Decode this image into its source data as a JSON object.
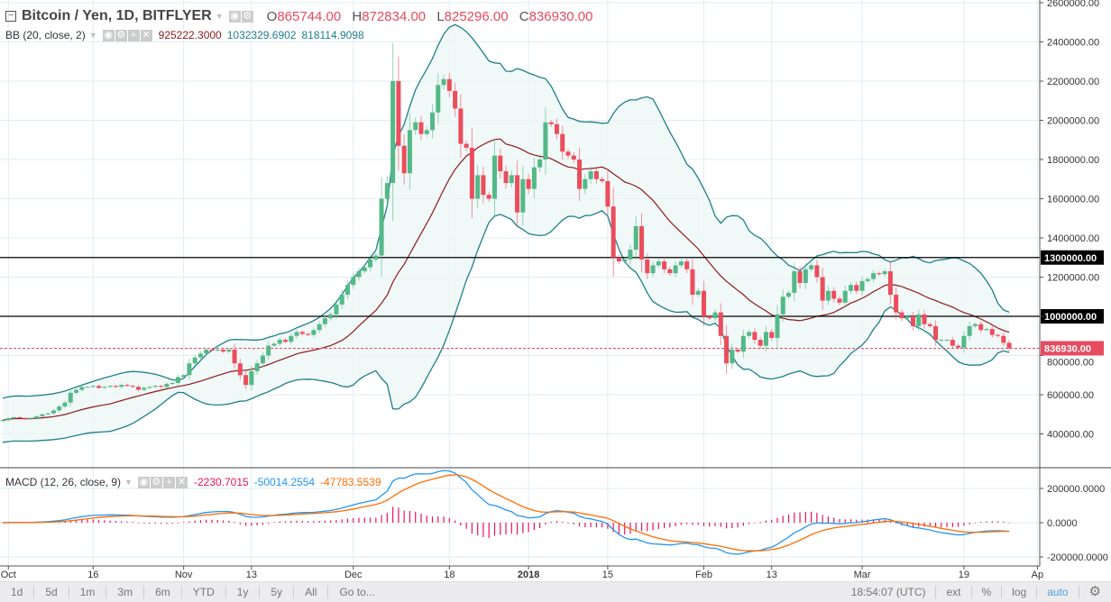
{
  "header": {
    "symbol_title": "Bitcoin / Yen, 1D, BITFLYER",
    "open_label": "O",
    "open_value": "865744.00",
    "high_label": "H",
    "high_value": "872834.00",
    "low_label": "L",
    "low_value": "825296.00",
    "close_label": "C",
    "close_value": "836930.00"
  },
  "bb_legend": {
    "label": "BB (20, close, 2)",
    "basis": "925222.3000",
    "upper": "1032329.6902",
    "lower": "818114.9098"
  },
  "macd_legend": {
    "label": "MACD (12, 26, close, 9)",
    "histogram": "-2230.7015",
    "macd": "-50014.2554",
    "signal": "-47783.5539"
  },
  "colors": {
    "up": "#53b987",
    "down": "#eb4d5c",
    "bb_band": "#1d7f8a",
    "bb_basis": "#8b1a1a",
    "bb_fill": "#eef6f6",
    "macd": "#2196f3",
    "signal": "#ff6d00",
    "hist": "#e8145a",
    "price_line": "#e84a5f",
    "grid": "#e1ecf2"
  },
  "chart_data": {
    "type": "candlestick",
    "title": "Bitcoin / Yen, 1D, BITFLYER",
    "start_date": "2017-09-30",
    "end_date": "2018-03-27",
    "closes_thousand_jpy": [
      470,
      480,
      485,
      480,
      475,
      480,
      490,
      500,
      505,
      520,
      540,
      560,
      610,
      625,
      640,
      640,
      645,
      635,
      640,
      645,
      640,
      650,
      645,
      640,
      625,
      635,
      640,
      645,
      640,
      655,
      660,
      690,
      700,
      760,
      790,
      810,
      830,
      825,
      830,
      820,
      830,
      760,
      700,
      650,
      720,
      760,
      800,
      850,
      860,
      880,
      870,
      900,
      920,
      910,
      905,
      930,
      960,
      990,
      1010,
      1060,
      1110,
      1160,
      1200,
      1230,
      1250,
      1290,
      1310,
      1600,
      1680,
      2200,
      1870,
      1730,
      1950,
      1990,
      1930,
      1950,
      2040,
      2180,
      2210,
      2150,
      2060,
      1880,
      1860,
      1600,
      1720,
      1620,
      1600,
      1820,
      1740,
      1680,
      1720,
      1530,
      1700,
      1650,
      1760,
      1800,
      1990,
      1980,
      1930,
      1840,
      1820,
      1800,
      1650,
      1700,
      1740,
      1700,
      1690,
      1560,
      1300,
      1280,
      1290,
      1340,
      1460,
      1290,
      1220,
      1260,
      1280,
      1240,
      1220,
      1260,
      1280,
      1240,
      1110,
      1130,
      1000,
      990,
      1020,
      900,
      760,
      830,
      820,
      900,
      920,
      880,
      850,
      920,
      890,
      1010,
      1100,
      1120,
      1230,
      1170,
      1240,
      1260,
      1200,
      1080,
      1130,
      1090,
      1070,
      1130,
      1160,
      1130,
      1180,
      1190,
      1220,
      1215,
      1230,
      1110,
      1020,
      990,
      1000,
      950,
      1010,
      960,
      950,
      880,
      880,
      880,
      850,
      840,
      900,
      950,
      960,
      930,
      935,
      905,
      900,
      865,
      837
    ],
    "y_axis": {
      "range": [
        300000,
        2600000
      ],
      "ticks": [
        "2600000.00",
        "2400000.00",
        "2200000.00",
        "2000000.00",
        "1800000.00",
        "1600000.00",
        "1400000.00",
        "1200000.00",
        "1000000.00",
        "800000.00",
        "600000.00",
        "400000.00"
      ]
    },
    "horizontal_lines": [
      {
        "value": 1300000,
        "label": "1300000.00"
      },
      {
        "value": 1000000,
        "label": "1000000.00"
      }
    ],
    "last_price": {
      "value": 836930,
      "label": "836930.00"
    },
    "x_ticks": [
      {
        "day": 1,
        "label": "Oct"
      },
      {
        "day": 16,
        "label": "16"
      },
      {
        "day": 32,
        "label": "Nov"
      },
      {
        "day": 44,
        "label": "13"
      },
      {
        "day": 62,
        "label": "Dec"
      },
      {
        "day": 79,
        "label": "18"
      },
      {
        "day": 93,
        "label": "2018"
      },
      {
        "day": 107,
        "label": "15"
      },
      {
        "day": 124,
        "label": "Feb"
      },
      {
        "day": 136,
        "label": "13"
      },
      {
        "day": 152,
        "label": "Mar"
      },
      {
        "day": 170,
        "label": "19"
      },
      {
        "day": 183,
        "label": "Ap"
      }
    ],
    "macd_axis": {
      "range": [
        -260000,
        330000
      ],
      "ticks": [
        {
          "value": 200000,
          "label": "200000.0000"
        },
        {
          "value": 0,
          "label": "0.0000"
        },
        {
          "value": -200000,
          "label": "-200000.0000"
        }
      ]
    },
    "indicators": [
      "Bollinger Bands (20, close, 2)",
      "MACD (12, 26, close, 9)"
    ]
  },
  "bottom_bar": {
    "ranges": [
      "1d",
      "5d",
      "1m",
      "3m",
      "6m",
      "YTD",
      "1y",
      "5y",
      "All"
    ],
    "goto": "Go to...",
    "time": "18:54:07 (UTC)",
    "ext": "ext",
    "percent": "%",
    "log": "log",
    "auto": "auto"
  }
}
